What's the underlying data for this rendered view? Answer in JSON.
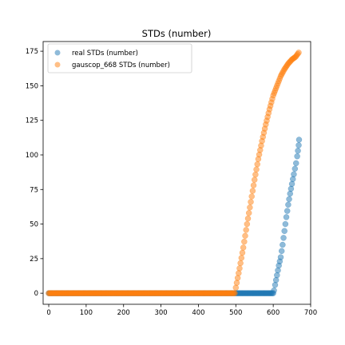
{
  "chart_data": {
    "type": "scatter",
    "title": "STDs (number)",
    "xlabel": "",
    "ylabel": "",
    "xlim": [
      -15,
      700
    ],
    "ylim": [
      -8,
      182
    ],
    "x_ticks": [
      0,
      100,
      200,
      300,
      400,
      500,
      600,
      700
    ],
    "y_ticks": [
      0,
      25,
      50,
      75,
      100,
      125,
      150,
      175
    ],
    "grid": false,
    "legend_position": "top-left",
    "series": [
      {
        "name": "real STDs (number)",
        "color": "#1f77b4",
        "zero_until": 600,
        "segments": [
          [
            0,
            0
          ],
          [
            600,
            0
          ],
          [
            602,
            2
          ],
          [
            605,
            6
          ],
          [
            610,
            13
          ],
          [
            615,
            20
          ],
          [
            620,
            26
          ],
          [
            625,
            35
          ],
          [
            630,
            45
          ],
          [
            635,
            55
          ],
          [
            640,
            64
          ],
          [
            645,
            72
          ],
          [
            650,
            79
          ],
          [
            655,
            86
          ],
          [
            658,
            90
          ],
          [
            661,
            94
          ],
          [
            664,
            99
          ],
          [
            666,
            103
          ],
          [
            668,
            107
          ],
          [
            669,
            111
          ]
        ]
      },
      {
        "name": "gauscop_668 STDs (number)",
        "color": "#ff7f0e",
        "zero_until": 497,
        "segments": [
          [
            0,
            0
          ],
          [
            497,
            0
          ],
          [
            500,
            4
          ],
          [
            510,
            18
          ],
          [
            520,
            33
          ],
          [
            530,
            50
          ],
          [
            540,
            66
          ],
          [
            550,
            82
          ],
          [
            560,
            97
          ],
          [
            570,
            110
          ],
          [
            580,
            122
          ],
          [
            590,
            133
          ],
          [
            600,
            143
          ],
          [
            610,
            150
          ],
          [
            620,
            157
          ],
          [
            630,
            162
          ],
          [
            640,
            166
          ],
          [
            650,
            169
          ],
          [
            660,
            171
          ],
          [
            668,
            174
          ]
        ]
      }
    ]
  }
}
